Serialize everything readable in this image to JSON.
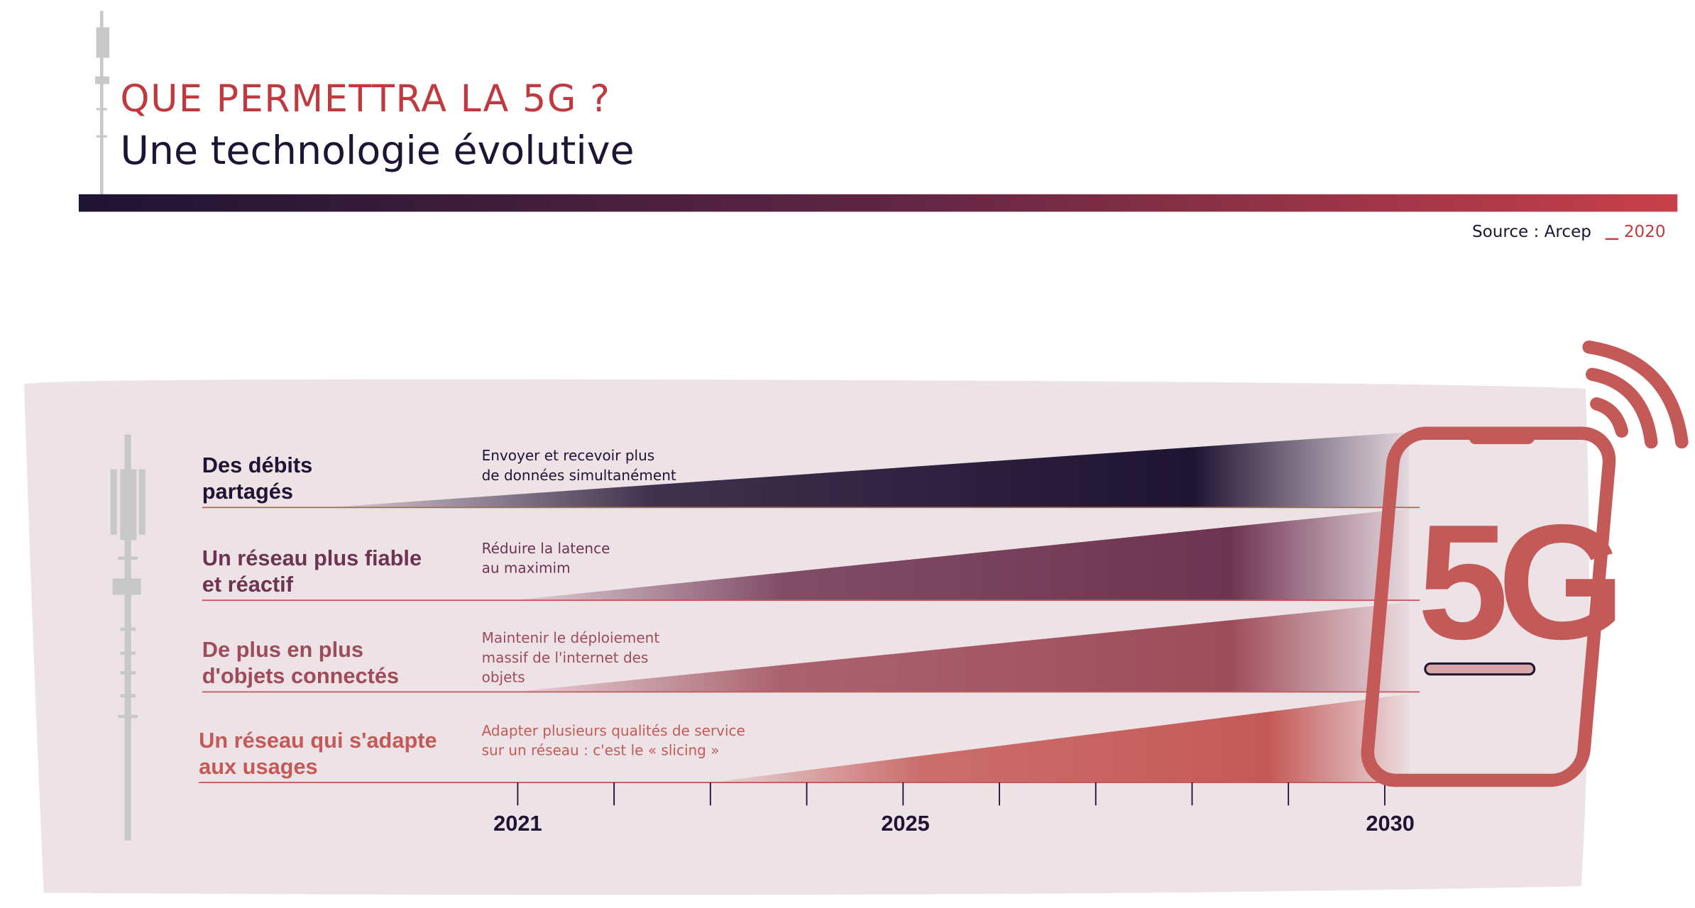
{
  "header": {
    "title": "QUE PERMETTRA LA 5G ?",
    "subtitle": "Une technologie évolutive",
    "source": "Source : Arcep",
    "source_year": "2020"
  },
  "rows": [
    {
      "label": [
        "Des débits",
        "partagés"
      ],
      "description": [
        "Envoyer et recevoir plus",
        "de données simultanément"
      ]
    },
    {
      "label": [
        "Un réseau plus fiable",
        "et réactif"
      ],
      "description": [
        "Réduire la latence",
        "au maximim"
      ]
    },
    {
      "label": [
        "De plus en plus",
        "d'objets connectés"
      ],
      "description": [
        "Maintenir le déploiement",
        "massif de l'internet des",
        "objets"
      ]
    },
    {
      "label": [
        "Un réseau qui s'adapte",
        "aux usages"
      ],
      "description": [
        "Adapter plusieurs qualités de service",
        "sur un réseau : c'est le « slicing »"
      ]
    }
  ],
  "timeline": {
    "years": [
      "2021",
      "2025",
      "2030"
    ]
  },
  "phone": {
    "label": "5G"
  }
}
